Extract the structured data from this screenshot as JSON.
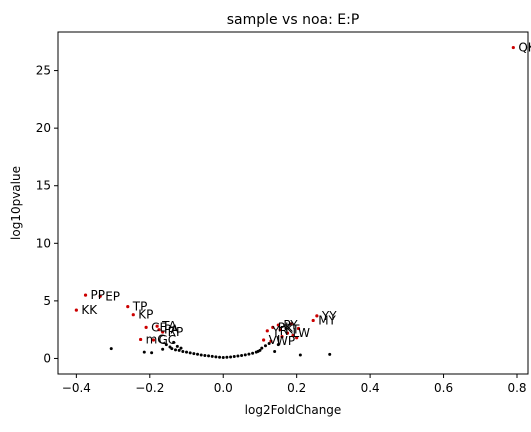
{
  "chart_data": {
    "type": "scatter",
    "title": "sample vs noa: E:P",
    "xlabel": "log2FoldChange",
    "ylabel": "log10pvalue",
    "xlim": [
      -0.45,
      0.83
    ],
    "ylim": [
      -1.35,
      28.35
    ],
    "xticks": [
      -0.4,
      -0.2,
      0.0,
      0.2,
      0.4,
      0.6,
      0.8
    ],
    "xtick_labels": [
      "−0.4",
      "−0.2",
      "0.0",
      "0.2",
      "0.4",
      "0.6",
      "0.8"
    ],
    "yticks": [
      0,
      5,
      10,
      15,
      20,
      25
    ],
    "ytick_labels": [
      "0",
      "5",
      "10",
      "15",
      "20",
      "25"
    ],
    "grid": false,
    "colors": {
      "significant": "#cc0000",
      "other": "#000000"
    },
    "labeled_points": [
      {
        "label": "QK",
        "x": 0.79,
        "y": 27.0
      },
      {
        "label": "PP",
        "x": -0.375,
        "y": 5.5
      },
      {
        "label": "EP",
        "x": -0.335,
        "y": 5.4
      },
      {
        "label": "KK",
        "x": -0.4,
        "y": 4.2
      },
      {
        "label": "TP",
        "x": -0.26,
        "y": 4.5
      },
      {
        "label": "KP",
        "x": -0.245,
        "y": 3.8
      },
      {
        "label": "TA",
        "x": -0.18,
        "y": 2.8
      },
      {
        "label": "CE",
        "x": -0.21,
        "y": 2.7
      },
      {
        "label": "PA",
        "x": -0.175,
        "y": 2.5
      },
      {
        "label": "RP",
        "x": -0.165,
        "y": 2.3
      },
      {
        "label": "mC",
        "x": -0.225,
        "y": 1.65
      },
      {
        "label": "GC",
        "x": -0.19,
        "y": 1.6
      },
      {
        "label": "YY",
        "x": 0.255,
        "y": 3.7
      },
      {
        "label": "MY",
        "x": 0.245,
        "y": 3.3
      },
      {
        "label": "PY",
        "x": 0.15,
        "y": 2.9
      },
      {
        "label": "PK",
        "x": 0.135,
        "y": 2.7
      },
      {
        "label": "KT",
        "x": 0.155,
        "y": 2.5
      },
      {
        "label": "YR",
        "x": 0.12,
        "y": 2.4
      },
      {
        "label": "LW",
        "x": 0.175,
        "y": 2.2
      },
      {
        "label": "VI",
        "x": 0.11,
        "y": 1.6
      },
      {
        "label": "WP",
        "x": 0.13,
        "y": 1.5
      }
    ],
    "significant_points": [
      {
        "x": 0.79,
        "y": 27.0
      },
      {
        "x": -0.375,
        "y": 5.5
      },
      {
        "x": -0.335,
        "y": 5.4
      },
      {
        "x": -0.4,
        "y": 4.2
      },
      {
        "x": -0.26,
        "y": 4.5
      },
      {
        "x": -0.245,
        "y": 3.8
      },
      {
        "x": -0.18,
        "y": 2.8
      },
      {
        "x": -0.21,
        "y": 2.7
      },
      {
        "x": -0.175,
        "y": 2.5
      },
      {
        "x": -0.165,
        "y": 2.3
      },
      {
        "x": -0.225,
        "y": 1.65
      },
      {
        "x": -0.19,
        "y": 1.6
      },
      {
        "x": 0.255,
        "y": 3.7
      },
      {
        "x": 0.245,
        "y": 3.3
      },
      {
        "x": 0.15,
        "y": 2.9
      },
      {
        "x": 0.135,
        "y": 2.7
      },
      {
        "x": 0.155,
        "y": 2.5
      },
      {
        "x": 0.12,
        "y": 2.4
      },
      {
        "x": 0.175,
        "y": 2.2
      },
      {
        "x": 0.11,
        "y": 1.6
      },
      {
        "x": 0.13,
        "y": 1.5
      },
      {
        "x": 0.19,
        "y": 2.0
      },
      {
        "x": 0.2,
        "y": 1.8
      },
      {
        "x": 0.16,
        "y": 1.9
      },
      {
        "x": 0.205,
        "y": 2.6
      },
      {
        "x": 0.185,
        "y": 3.0
      }
    ],
    "other_points": [
      {
        "x": -0.305,
        "y": 0.85
      },
      {
        "x": -0.215,
        "y": 0.55
      },
      {
        "x": -0.195,
        "y": 0.5
      },
      {
        "x": -0.165,
        "y": 0.8
      },
      {
        "x": -0.155,
        "y": 1.2
      },
      {
        "x": -0.145,
        "y": 1.0
      },
      {
        "x": -0.14,
        "y": 0.85
      },
      {
        "x": -0.13,
        "y": 0.75
      },
      {
        "x": -0.12,
        "y": 0.7
      },
      {
        "x": -0.11,
        "y": 0.6
      },
      {
        "x": -0.1,
        "y": 0.55
      },
      {
        "x": -0.09,
        "y": 0.48
      },
      {
        "x": -0.08,
        "y": 0.42
      },
      {
        "x": -0.07,
        "y": 0.36
      },
      {
        "x": -0.06,
        "y": 0.3
      },
      {
        "x": -0.05,
        "y": 0.26
      },
      {
        "x": -0.04,
        "y": 0.22
      },
      {
        "x": -0.03,
        "y": 0.18
      },
      {
        "x": -0.02,
        "y": 0.14
      },
      {
        "x": -0.01,
        "y": 0.1
      },
      {
        "x": 0.0,
        "y": 0.08
      },
      {
        "x": 0.01,
        "y": 0.1
      },
      {
        "x": 0.02,
        "y": 0.13
      },
      {
        "x": 0.03,
        "y": 0.17
      },
      {
        "x": 0.04,
        "y": 0.21
      },
      {
        "x": 0.05,
        "y": 0.26
      },
      {
        "x": 0.06,
        "y": 0.31
      },
      {
        "x": 0.07,
        "y": 0.38
      },
      {
        "x": 0.08,
        "y": 0.45
      },
      {
        "x": 0.09,
        "y": 0.55
      },
      {
        "x": 0.1,
        "y": 0.7
      },
      {
        "x": 0.105,
        "y": 0.9
      },
      {
        "x": 0.115,
        "y": 1.1
      },
      {
        "x": 0.125,
        "y": 1.3
      },
      {
        "x": 0.14,
        "y": 0.6
      },
      {
        "x": 0.21,
        "y": 0.3
      },
      {
        "x": 0.29,
        "y": 0.35
      },
      {
        "x": -0.135,
        "y": 1.4
      },
      {
        "x": -0.125,
        "y": 1.05
      },
      {
        "x": 0.095,
        "y": 0.62
      },
      {
        "x": -0.115,
        "y": 0.9
      },
      {
        "x": 0.15,
        "y": 1.2
      }
    ]
  }
}
